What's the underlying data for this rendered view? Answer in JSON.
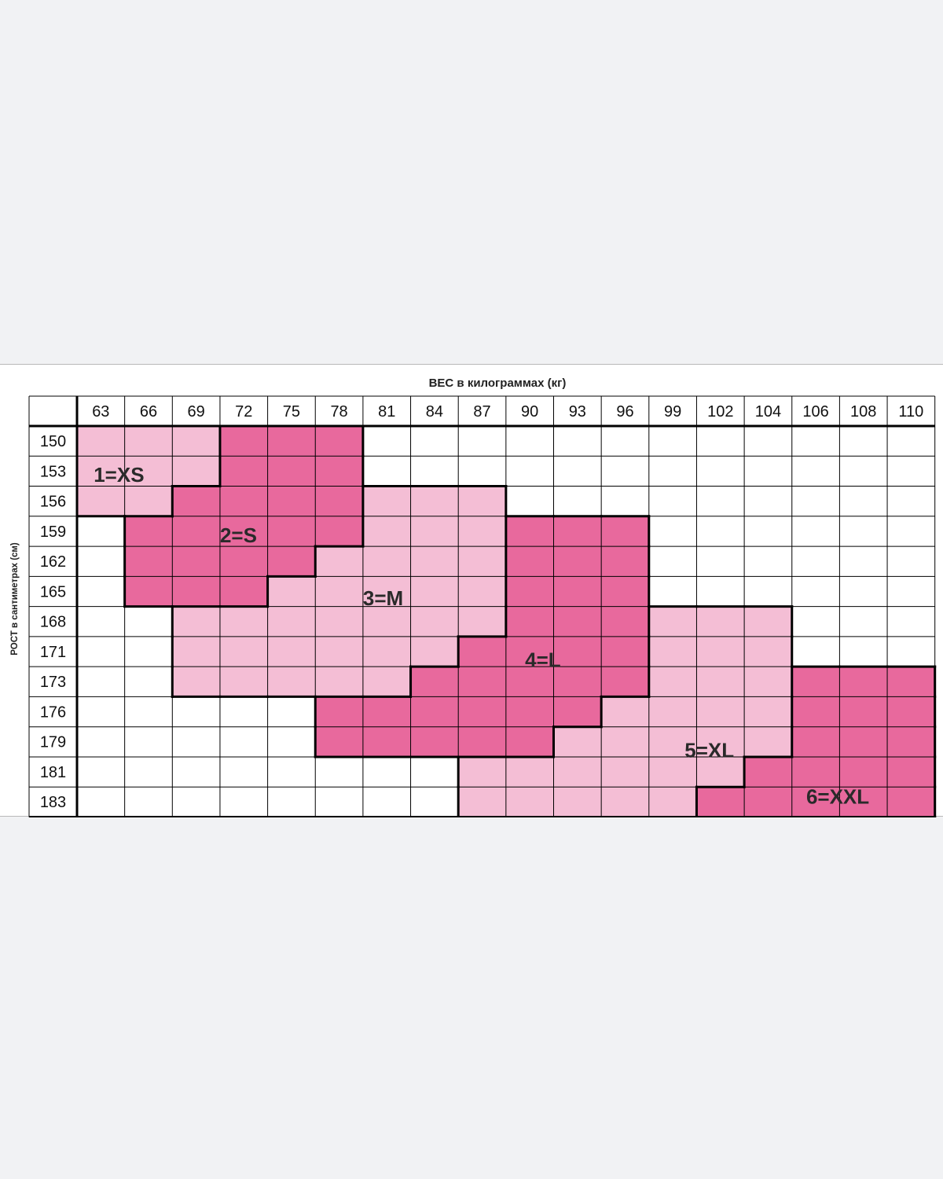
{
  "chart_data": {
    "type": "heatmap",
    "title": "",
    "xlabel": "ВЕС в килограммах (кг)",
    "ylabel": "РОСТ в сантиметрах (см)",
    "x_categories": [
      "63",
      "66",
      "69",
      "72",
      "75",
      "78",
      "81",
      "84",
      "87",
      "90",
      "93",
      "96",
      "99",
      "102",
      "104",
      "106",
      "108",
      "110"
    ],
    "y_categories": [
      "150",
      "153",
      "156",
      "159",
      "162",
      "165",
      "168",
      "171",
      "173",
      "176",
      "179",
      "181",
      "183"
    ],
    "colors": {
      "light": "#f4bed5",
      "dark": "#e8699d",
      "empty": "#ffffff",
      "grid": "#000000"
    },
    "grid": true,
    "zones": [
      {
        "label": "1=XS",
        "shade": "light",
        "cells": [
          [
            "63",
            "150"
          ],
          [
            "66",
            "150"
          ],
          [
            "69",
            "150"
          ],
          [
            "63",
            "153"
          ],
          [
            "66",
            "153"
          ],
          [
            "69",
            "153"
          ],
          [
            "63",
            "156"
          ],
          [
            "66",
            "156"
          ]
        ]
      },
      {
        "label": "2=S",
        "shade": "dark",
        "cells": [
          [
            "72",
            "150"
          ],
          [
            "75",
            "150"
          ],
          [
            "78",
            "150"
          ],
          [
            "72",
            "153"
          ],
          [
            "75",
            "153"
          ],
          [
            "78",
            "153"
          ],
          [
            "69",
            "156"
          ],
          [
            "72",
            "156"
          ],
          [
            "75",
            "156"
          ],
          [
            "78",
            "156"
          ],
          [
            "66",
            "159"
          ],
          [
            "69",
            "159"
          ],
          [
            "72",
            "159"
          ],
          [
            "75",
            "159"
          ],
          [
            "78",
            "159"
          ],
          [
            "66",
            "162"
          ],
          [
            "69",
            "162"
          ],
          [
            "72",
            "162"
          ],
          [
            "75",
            "162"
          ],
          [
            "66",
            "165"
          ],
          [
            "69",
            "165"
          ],
          [
            "72",
            "165"
          ]
        ]
      },
      {
        "label": "3=M",
        "shade": "light",
        "cells": [
          [
            "81",
            "156"
          ],
          [
            "84",
            "156"
          ],
          [
            "87",
            "156"
          ],
          [
            "81",
            "159"
          ],
          [
            "84",
            "159"
          ],
          [
            "87",
            "159"
          ],
          [
            "78",
            "162"
          ],
          [
            "81",
            "162"
          ],
          [
            "84",
            "162"
          ],
          [
            "87",
            "162"
          ],
          [
            "75",
            "165"
          ],
          [
            "78",
            "165"
          ],
          [
            "81",
            "165"
          ],
          [
            "84",
            "165"
          ],
          [
            "87",
            "165"
          ],
          [
            "69",
            "168"
          ],
          [
            "72",
            "168"
          ],
          [
            "75",
            "168"
          ],
          [
            "78",
            "168"
          ],
          [
            "81",
            "168"
          ],
          [
            "84",
            "168"
          ],
          [
            "87",
            "168"
          ],
          [
            "69",
            "171"
          ],
          [
            "72",
            "171"
          ],
          [
            "75",
            "171"
          ],
          [
            "78",
            "171"
          ],
          [
            "81",
            "171"
          ],
          [
            "84",
            "171"
          ],
          [
            "69",
            "173"
          ],
          [
            "72",
            "173"
          ],
          [
            "75",
            "173"
          ],
          [
            "78",
            "173"
          ],
          [
            "81",
            "173"
          ]
        ]
      },
      {
        "label": "4=L",
        "shade": "dark",
        "cells": [
          [
            "90",
            "159"
          ],
          [
            "93",
            "159"
          ],
          [
            "96",
            "159"
          ],
          [
            "90",
            "162"
          ],
          [
            "93",
            "162"
          ],
          [
            "96",
            "162"
          ],
          [
            "90",
            "165"
          ],
          [
            "93",
            "165"
          ],
          [
            "96",
            "165"
          ],
          [
            "90",
            "168"
          ],
          [
            "93",
            "168"
          ],
          [
            "96",
            "168"
          ],
          [
            "87",
            "171"
          ],
          [
            "90",
            "171"
          ],
          [
            "93",
            "171"
          ],
          [
            "96",
            "171"
          ],
          [
            "84",
            "173"
          ],
          [
            "87",
            "173"
          ],
          [
            "90",
            "173"
          ],
          [
            "93",
            "173"
          ],
          [
            "96",
            "173"
          ],
          [
            "78",
            "176"
          ],
          [
            "81",
            "176"
          ],
          [
            "84",
            "176"
          ],
          [
            "87",
            "176"
          ],
          [
            "90",
            "176"
          ],
          [
            "93",
            "176"
          ],
          [
            "78",
            "179"
          ],
          [
            "81",
            "179"
          ],
          [
            "84",
            "179"
          ],
          [
            "87",
            "179"
          ],
          [
            "90",
            "179"
          ]
        ]
      },
      {
        "label": "5=XL",
        "shade": "light",
        "cells": [
          [
            "99",
            "168"
          ],
          [
            "102",
            "168"
          ],
          [
            "104",
            "168"
          ],
          [
            "99",
            "171"
          ],
          [
            "102",
            "171"
          ],
          [
            "104",
            "171"
          ],
          [
            "99",
            "173"
          ],
          [
            "102",
            "173"
          ],
          [
            "104",
            "173"
          ],
          [
            "96",
            "176"
          ],
          [
            "99",
            "176"
          ],
          [
            "102",
            "176"
          ],
          [
            "104",
            "176"
          ],
          [
            "93",
            "179"
          ],
          [
            "96",
            "179"
          ],
          [
            "99",
            "179"
          ],
          [
            "102",
            "179"
          ],
          [
            "104",
            "179"
          ],
          [
            "87",
            "181"
          ],
          [
            "90",
            "181"
          ],
          [
            "93",
            "181"
          ],
          [
            "96",
            "181"
          ],
          [
            "99",
            "181"
          ],
          [
            "102",
            "181"
          ],
          [
            "87",
            "183"
          ],
          [
            "90",
            "183"
          ],
          [
            "93",
            "183"
          ],
          [
            "96",
            "183"
          ],
          [
            "99",
            "183"
          ]
        ]
      },
      {
        "label": "6=XXL",
        "shade": "dark",
        "cells": [
          [
            "106",
            "173"
          ],
          [
            "108",
            "173"
          ],
          [
            "110",
            "173"
          ],
          [
            "106",
            "176"
          ],
          [
            "108",
            "176"
          ],
          [
            "110",
            "176"
          ],
          [
            "106",
            "179"
          ],
          [
            "108",
            "179"
          ],
          [
            "110",
            "179"
          ],
          [
            "104",
            "181"
          ],
          [
            "106",
            "181"
          ],
          [
            "108",
            "181"
          ],
          [
            "110",
            "181"
          ],
          [
            "102",
            "183"
          ],
          [
            "104",
            "183"
          ],
          [
            "106",
            "183"
          ],
          [
            "108",
            "183"
          ],
          [
            "110",
            "183"
          ]
        ]
      }
    ]
  }
}
